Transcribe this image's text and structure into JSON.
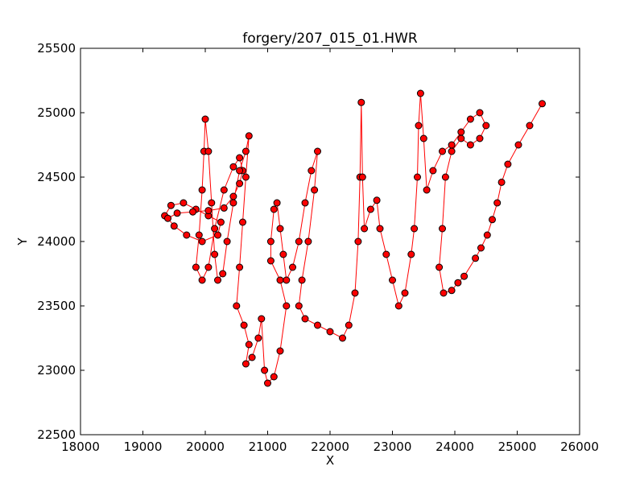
{
  "chart_data": {
    "type": "scatter",
    "title": "forgery/207_015_01.HWR",
    "xlabel": "X",
    "ylabel": "Y",
    "xlim": [
      18000,
      26000
    ],
    "ylim": [
      22500,
      25500
    ],
    "xticks": [
      18000,
      19000,
      20000,
      21000,
      22000,
      23000,
      24000,
      25000,
      26000
    ],
    "yticks": [
      22500,
      23000,
      23500,
      24000,
      24500,
      25000,
      25500
    ],
    "xtick_labels": [
      "18000",
      "19000",
      "20000",
      "21000",
      "22000",
      "23000",
      "24000",
      "25000",
      "26000"
    ],
    "ytick_labels": [
      "22500",
      "23000",
      "23500",
      "24000",
      "24500",
      "25000",
      "25500"
    ],
    "grid": false,
    "marker_color": "#ff0000",
    "marker_edge_color": "#000000",
    "line_color": "#ff0000",
    "series": [
      {
        "points": [
          [
            19350,
            24200
          ],
          [
            19450,
            24280
          ],
          [
            19650,
            24300
          ],
          [
            19850,
            24250
          ],
          [
            20050,
            24200
          ],
          [
            20250,
            24150
          ],
          [
            20200,
            24050
          ],
          [
            19950,
            24000
          ],
          [
            19700,
            24050
          ],
          [
            19500,
            24120
          ],
          [
            19400,
            24180
          ],
          [
            19550,
            24220
          ],
          [
            19800,
            24230
          ],
          [
            20050,
            24240
          ],
          [
            20300,
            24260
          ],
          [
            20450,
            24350
          ],
          [
            20550,
            24450
          ],
          [
            20600,
            24550
          ],
          [
            20550,
            24650
          ],
          [
            20450,
            24580
          ],
          [
            20300,
            24400
          ],
          [
            20150,
            24100
          ],
          [
            20050,
            23800
          ],
          [
            19950,
            23700
          ],
          [
            19850,
            23800
          ],
          [
            19900,
            24050
          ],
          [
            19950,
            24400
          ],
          [
            19980,
            24700
          ],
          [
            20000,
            24950
          ],
          [
            20050,
            24700
          ],
          [
            20100,
            24300
          ],
          [
            20150,
            23900
          ],
          [
            20200,
            23700
          ],
          [
            20280,
            23750
          ],
          [
            20350,
            24000
          ],
          [
            20450,
            24300
          ],
          [
            20550,
            24550
          ],
          [
            20650,
            24700
          ],
          [
            20700,
            24820
          ],
          [
            20650,
            24500
          ],
          [
            20600,
            24150
          ],
          [
            20550,
            23800
          ],
          [
            20500,
            23500
          ],
          [
            20620,
            23350
          ],
          [
            20700,
            23200
          ],
          [
            20650,
            23050
          ],
          [
            20750,
            23100
          ],
          [
            20850,
            23250
          ],
          [
            20900,
            23400
          ],
          [
            20950,
            23000
          ],
          [
            21000,
            22900
          ],
          [
            21100,
            22950
          ],
          [
            21200,
            23150
          ],
          [
            21300,
            23500
          ],
          [
            21200,
            23700
          ],
          [
            21050,
            23850
          ],
          [
            21050,
            24000
          ],
          [
            21100,
            24250
          ],
          [
            21150,
            24300
          ],
          [
            21200,
            24100
          ],
          [
            21250,
            23900
          ],
          [
            21300,
            23700
          ],
          [
            21400,
            23800
          ],
          [
            21500,
            24000
          ],
          [
            21600,
            24300
          ],
          [
            21700,
            24550
          ],
          [
            21800,
            24700
          ],
          [
            21750,
            24400
          ],
          [
            21650,
            24000
          ],
          [
            21550,
            23700
          ],
          [
            21500,
            23500
          ],
          [
            21600,
            23400
          ],
          [
            21800,
            23350
          ],
          [
            22000,
            23300
          ],
          [
            22200,
            23250
          ],
          [
            22300,
            23350
          ],
          [
            22400,
            23600
          ],
          [
            22450,
            24000
          ],
          [
            22480,
            24500
          ],
          [
            22500,
            25080
          ],
          [
            22520,
            24500
          ],
          [
            22550,
            24100
          ],
          [
            22650,
            24250
          ],
          [
            22750,
            24320
          ],
          [
            22800,
            24100
          ],
          [
            22900,
            23900
          ],
          [
            23000,
            23700
          ],
          [
            23100,
            23500
          ],
          [
            23200,
            23600
          ],
          [
            23300,
            23900
          ],
          [
            23350,
            24100
          ],
          [
            23400,
            24500
          ],
          [
            23420,
            24900
          ],
          [
            23450,
            25150
          ],
          [
            23500,
            24800
          ],
          [
            23550,
            24400
          ],
          [
            23650,
            24550
          ],
          [
            23800,
            24700
          ],
          [
            23950,
            24750
          ],
          [
            24100,
            24850
          ],
          [
            24250,
            24950
          ],
          [
            24400,
            25000
          ],
          [
            24500,
            24900
          ],
          [
            24400,
            24800
          ],
          [
            24250,
            24750
          ],
          [
            24100,
            24800
          ],
          [
            23950,
            24700
          ],
          [
            23850,
            24500
          ],
          [
            23800,
            24100
          ],
          [
            23750,
            23800
          ],
          [
            23820,
            23600
          ],
          [
            23950,
            23620
          ],
          [
            24050,
            23680
          ],
          [
            24150,
            23730
          ],
          [
            24330,
            23870
          ],
          [
            24420,
            23950
          ],
          [
            24520,
            24050
          ],
          [
            24600,
            24170
          ],
          [
            24680,
            24300
          ],
          [
            24750,
            24460
          ],
          [
            24850,
            24600
          ],
          [
            25020,
            24750
          ],
          [
            25200,
            24900
          ],
          [
            25400,
            25070
          ]
        ]
      }
    ]
  }
}
